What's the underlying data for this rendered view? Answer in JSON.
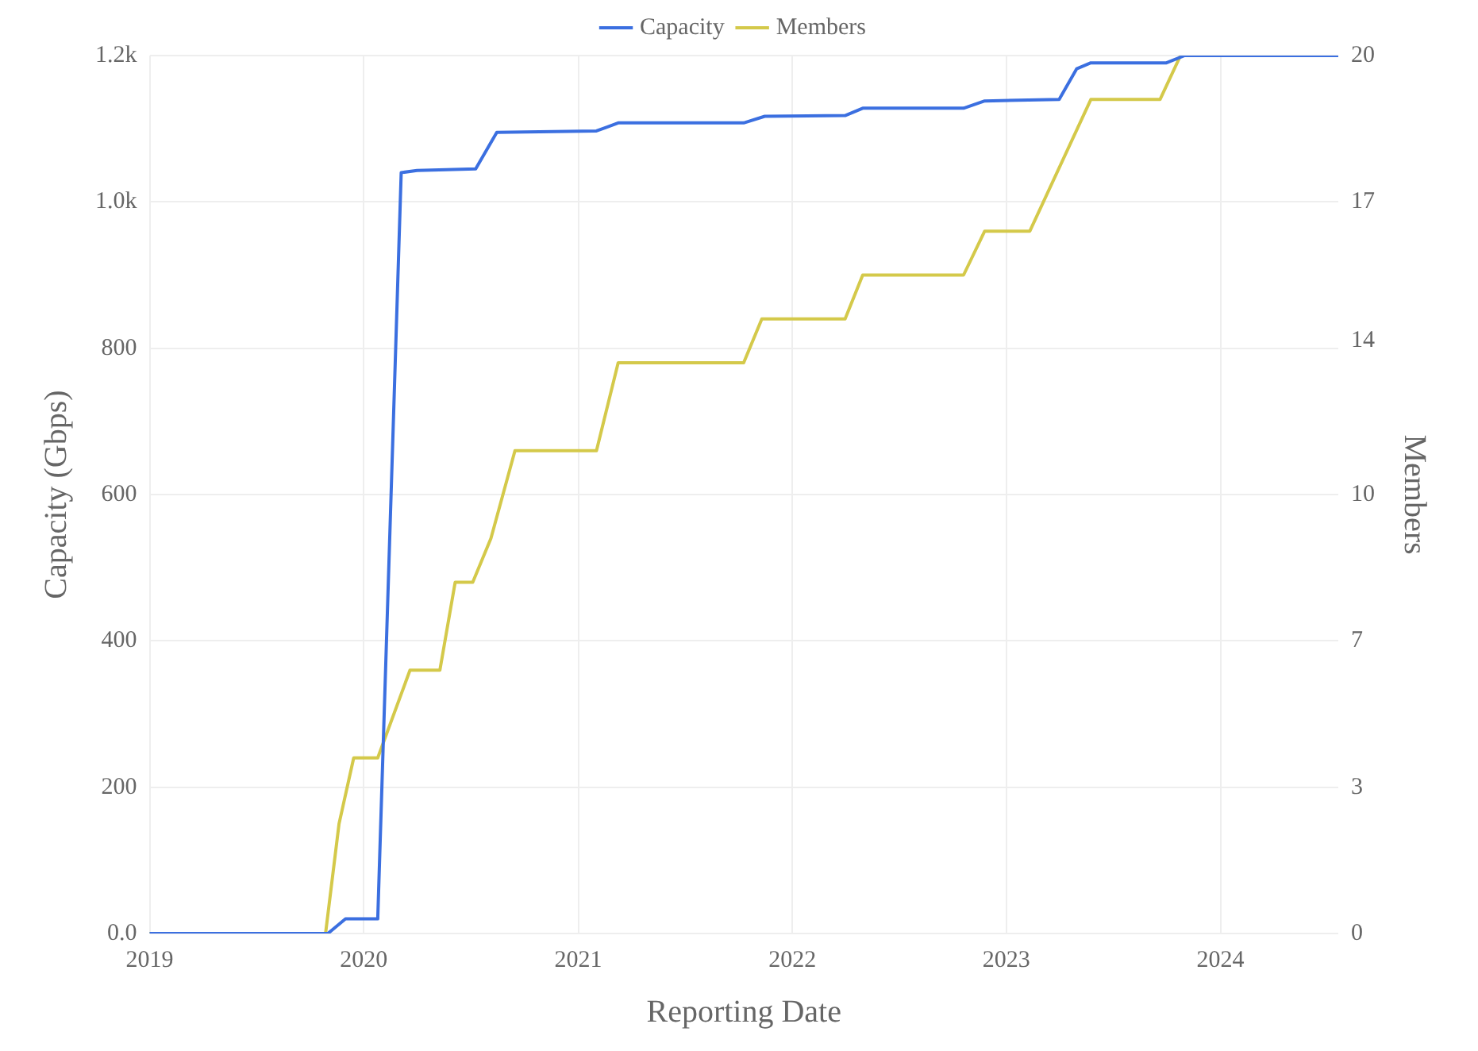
{
  "chart_data": {
    "type": "line",
    "xlabel": "Reporting Date",
    "ylabel": "Capacity (Gbps)",
    "y2label": "Members",
    "xlim": [
      "2019-01-01",
      "2024-07-20"
    ],
    "xticks": [
      "2019",
      "2020",
      "2021",
      "2022",
      "2023",
      "2024"
    ],
    "ylim": [
      0,
      1200
    ],
    "yticks": [
      {
        "value": 0,
        "label": "0.0"
      },
      200,
      400,
      600,
      800,
      {
        "value": 1000,
        "label": "1.0k"
      },
      {
        "value": 1200,
        "label": "1.2k"
      }
    ],
    "y2lim": [
      0,
      20
    ],
    "y2ticks": [
      0,
      {
        "value": 3.333,
        "label": "3"
      },
      {
        "value": 6.667,
        "label": "7"
      },
      10,
      {
        "value": 13.5,
        "label": "14"
      },
      {
        "value": 16.667,
        "label": "17"
      },
      20
    ],
    "grid": true,
    "legend": "top",
    "marker": "none",
    "line_style": "solid",
    "series": [
      {
        "name": "Capacity",
        "color": "#3b6fe0",
        "x": [
          "2019-01-01",
          "2019-11-01",
          "2019-12-01",
          "2020-01-25",
          "2020-03-05",
          "2020-04-01",
          "2020-07-10",
          "2020-08-15",
          "2021-02-01",
          "2021-03-10",
          "2021-10-10",
          "2021-11-15",
          "2022-04-01",
          "2022-05-01",
          "2022-10-20",
          "2022-11-25",
          "2023-04-01",
          "2023-05-01",
          "2023-05-25",
          "2023-10-01",
          "2023-11-01",
          "2024-07-20"
        ],
        "values": [
          0,
          0,
          20,
          20,
          1040,
          1043,
          1045,
          1095,
          1097,
          1108,
          1108,
          1117,
          1118,
          1128,
          1128,
          1138,
          1140,
          1182,
          1190,
          1190,
          1200,
          1200
        ]
      },
      {
        "name": "Members",
        "color": "#d4c94a",
        "axis": "y2",
        "x": [
          "2019-01-01",
          "2019-10-28",
          "2019-11-20",
          "2019-12-15",
          "2020-01-25",
          "2020-03-20",
          "2020-05-10",
          "2020-06-05",
          "2020-07-05",
          "2020-08-05",
          "2020-09-15",
          "2021-02-01",
          "2021-03-10",
          "2021-10-10",
          "2021-11-10",
          "2022-04-01",
          "2022-05-01",
          "2022-10-20",
          "2022-11-25",
          "2023-02-10",
          "2023-05-25",
          "2023-09-20",
          "2023-10-25",
          "2024-07-20"
        ],
        "values": [
          0,
          0,
          2.5,
          4,
          4,
          6,
          6,
          8,
          8,
          9,
          11,
          11,
          13,
          13,
          14,
          14,
          15,
          15,
          16,
          16,
          19,
          19,
          20,
          20
        ]
      }
    ]
  }
}
